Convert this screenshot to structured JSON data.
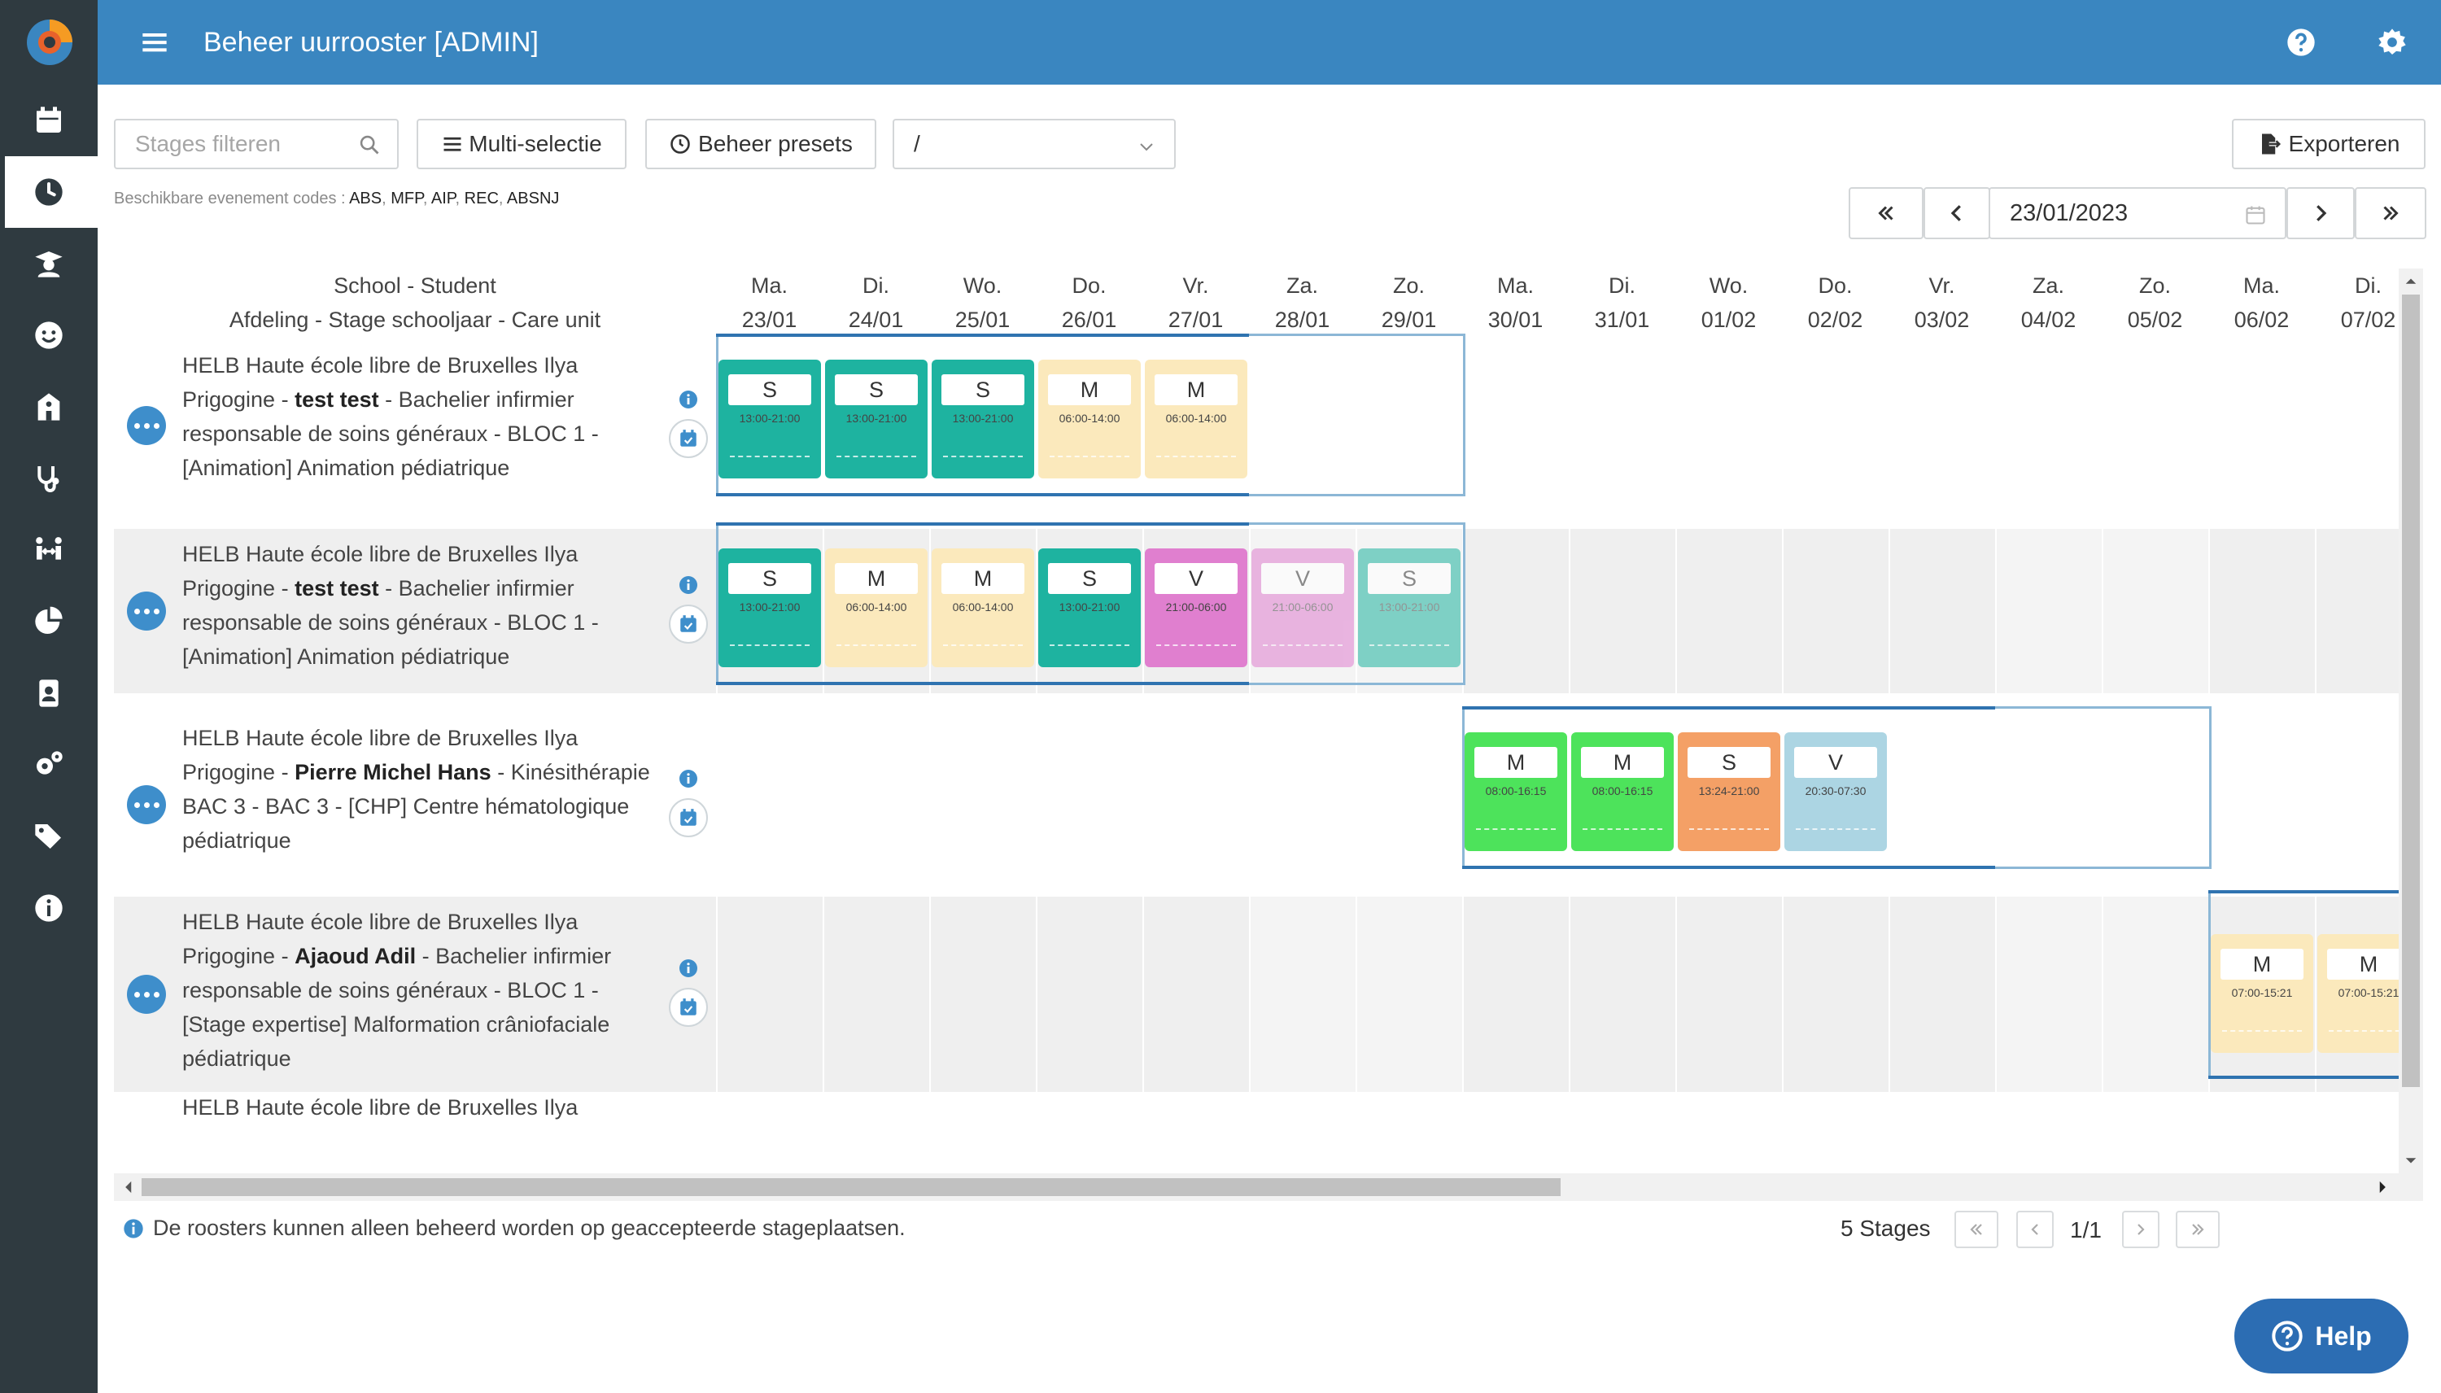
{
  "header": {
    "title": "Beheer uurrooster [ADMIN]"
  },
  "toolbar": {
    "filter_placeholder": "Stages filteren",
    "multi_label": "Multi-selectie",
    "presets_label": "Beheer presets",
    "path_value": "/",
    "export_label": "Exporteren"
  },
  "codes": {
    "prefix": "Beschikbare evenement codes :",
    "list": [
      "ABS",
      "MFP",
      "AIP",
      "REC",
      "ABSNJ"
    ]
  },
  "date_nav": {
    "date": "23/01/2023"
  },
  "grid": {
    "head_line1": "School - Student",
    "head_line2": "Afdeling - Stage schooljaar - Care unit",
    "days": [
      {
        "dow": "Ma.",
        "date": "23/01"
      },
      {
        "dow": "Di.",
        "date": "24/01"
      },
      {
        "dow": "Wo.",
        "date": "25/01"
      },
      {
        "dow": "Do.",
        "date": "26/01"
      },
      {
        "dow": "Vr.",
        "date": "27/01"
      },
      {
        "dow": "Za.",
        "date": "28/01"
      },
      {
        "dow": "Zo.",
        "date": "29/01"
      },
      {
        "dow": "Ma.",
        "date": "30/01"
      },
      {
        "dow": "Di.",
        "date": "31/01"
      },
      {
        "dow": "Wo.",
        "date": "01/02"
      },
      {
        "dow": "Do.",
        "date": "02/02"
      },
      {
        "dow": "Vr.",
        "date": "03/02"
      },
      {
        "dow": "Za.",
        "date": "04/02"
      },
      {
        "dow": "Zo.",
        "date": "05/02"
      },
      {
        "dow": "Ma.",
        "date": "06/02"
      },
      {
        "dow": "Di.",
        "date": "07/02"
      }
    ],
    "rows": [
      {
        "school": "HELB Haute école libre de Bruxelles Ilya Prigogine",
        "student": "test test",
        "rest": "Bachelier infirmier responsable de soins généraux - BLOC 1 - [Animation] Animation pédiatrique",
        "shifts": [
          {
            "day": 0,
            "code": "S",
            "time": "13:00-21:00",
            "color": "#1eb3a0"
          },
          {
            "day": 1,
            "code": "S",
            "time": "13:00-21:00",
            "color": "#1eb3a0"
          },
          {
            "day": 2,
            "code": "S",
            "time": "13:00-21:00",
            "color": "#1eb3a0"
          },
          {
            "day": 3,
            "code": "M",
            "time": "06:00-14:00",
            "color": "#fbe9bc"
          },
          {
            "day": 4,
            "code": "M",
            "time": "06:00-14:00",
            "color": "#fbe9bc"
          }
        ]
      },
      {
        "school": "HELB Haute école libre de Bruxelles Ilya Prigogine",
        "student": "test test",
        "rest": "Bachelier infirmier responsable de soins généraux - BLOC 1 - [Animation] Animation pédiatrique",
        "shifts": [
          {
            "day": 0,
            "code": "S",
            "time": "13:00-21:00",
            "color": "#1eb3a0"
          },
          {
            "day": 1,
            "code": "M",
            "time": "06:00-14:00",
            "color": "#fbe9bc"
          },
          {
            "day": 2,
            "code": "M",
            "time": "06:00-14:00",
            "color": "#fbe9bc"
          },
          {
            "day": 3,
            "code": "S",
            "time": "13:00-21:00",
            "color": "#1eb3a0"
          },
          {
            "day": 4,
            "code": "V",
            "time": "21:00-06:00",
            "color": "#e07fcf"
          },
          {
            "day": 5,
            "code": "V",
            "time": "21:00-06:00",
            "color": "#e07fcf"
          },
          {
            "day": 6,
            "code": "S",
            "time": "13:00-21:00",
            "color": "#1eb3a0"
          }
        ]
      },
      {
        "school": "HELB Haute école libre de Bruxelles Ilya Prigogine",
        "student": "Pierre Michel Hans",
        "rest": "Kinésithérapie BAC 3 - BAC 3 - [CHP] Centre hématologique pédiatrique",
        "shifts": [
          {
            "day": 7,
            "code": "M",
            "time": "08:00-16:15",
            "color": "#4de35b"
          },
          {
            "day": 8,
            "code": "M",
            "time": "08:00-16:15",
            "color": "#4de35b"
          },
          {
            "day": 9,
            "code": "S",
            "time": "13:24-21:00",
            "color": "#f4a066"
          },
          {
            "day": 10,
            "code": "V",
            "time": "20:30-07:30",
            "color": "#acd5e3"
          }
        ]
      },
      {
        "school": "HELB Haute école libre de Bruxelles Ilya Prigogine",
        "student": "Ajaoud Adil",
        "rest": "Bachelier infirmier responsable de soins généraux - BLOC 1 - [Stage expertise] Malformation crâniofaciale pédiatrique",
        "shifts": [
          {
            "day": 14,
            "code": "M",
            "time": "07:00-15:21",
            "color": "#fbe9bc"
          },
          {
            "day": 15,
            "code": "M",
            "time": "07:00-15:21",
            "color": "#fbe9bc"
          }
        ]
      },
      {
        "school": "HELB Haute école libre de Bruxelles Ilya",
        "student": "",
        "rest": "",
        "shifts": []
      }
    ]
  },
  "footer": {
    "note": "De roosters kunnen alleen beheerd worden op geaccepteerde stageplaatsen.",
    "stage_count": "5 Stages",
    "page": "1/1"
  },
  "help_fab": {
    "label": "Help"
  },
  "colors": {
    "header": "#3a86c0",
    "sidebar": "#2f3a40",
    "accent": "#3e8ecb"
  }
}
